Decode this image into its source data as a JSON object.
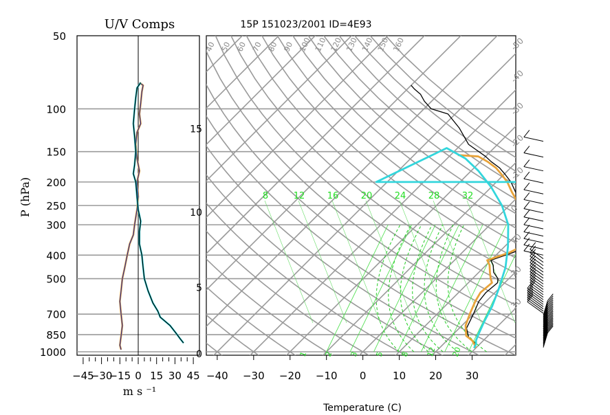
{
  "chart_data": [
    {
      "type": "line",
      "title": "U/V Comps",
      "xlabel": "m s ⁻¹",
      "ylabel": "P (hPa)",
      "xlim": [
        -50,
        50
      ],
      "ylim": [
        1000,
        50
      ],
      "y_scale": "log",
      "grid": true,
      "x_tick_labels": [
        "−45",
        "−30",
        "−15",
        "0",
        "15",
        "30",
        "45"
      ],
      "x_ticks": [
        -45,
        -30,
        -15,
        0,
        15,
        30,
        45
      ],
      "y_ticks": [
        50,
        100,
        150,
        200,
        250,
        300,
        400,
        500,
        700,
        850,
        1000
      ],
      "y_tick_labels": [
        "50",
        "100",
        "150",
        "200",
        "250",
        "300",
        "400",
        "500",
        "700",
        "850",
        "1000"
      ],
      "series": [
        {
          "color": "#e8a33a",
          "points": [
            [
              1,
              78
            ],
            [
              4,
              80
            ],
            [
              3,
              85
            ],
            [
              2,
              95
            ],
            [
              1,
              105
            ],
            [
              2,
              115
            ],
            [
              -1,
              125
            ],
            [
              -2,
              140
            ],
            [
              -1,
              160
            ],
            [
              1,
              180
            ],
            [
              -1,
              200
            ],
            [
              0,
              230
            ],
            [
              -1,
              260
            ],
            [
              -2,
              280
            ],
            [
              -3,
              300
            ],
            [
              -4,
              330
            ],
            [
              -7,
              360
            ],
            [
              -9,
              400
            ],
            [
              -11,
              450
            ],
            [
              -13,
              500
            ],
            [
              -14,
              560
            ],
            [
              -15,
              620
            ],
            [
              -14,
              700
            ],
            [
              -13,
              780
            ],
            [
              -14,
              860
            ],
            [
              -15,
              940
            ],
            [
              -14,
              980
            ]
          ]
        },
        {
          "color": "#2f2f8f",
          "points": [
            [
              1,
              78
            ],
            [
              4,
              80
            ],
            [
              3,
              85
            ],
            [
              2,
              95
            ],
            [
              1,
              105
            ],
            [
              2,
              115
            ],
            [
              -1,
              125
            ],
            [
              -2,
              140
            ],
            [
              -1,
              160
            ],
            [
              1,
              180
            ],
            [
              -1,
              200
            ],
            [
              0,
              230
            ],
            [
              -1,
              260
            ],
            [
              -2,
              280
            ],
            [
              -3,
              300
            ],
            [
              -4,
              330
            ],
            [
              -7,
              360
            ],
            [
              -9,
              400
            ],
            [
              -11,
              450
            ],
            [
              -13,
              500
            ],
            [
              -14,
              560
            ],
            [
              -15,
              620
            ],
            [
              -14,
              700
            ],
            [
              -13,
              780
            ],
            [
              -14,
              860
            ],
            [
              -15,
              940
            ],
            [
              -14,
              980
            ]
          ]
        },
        {
          "color": "#33d6dc",
          "points": [
            [
              2,
              78
            ],
            [
              -1,
              82
            ],
            [
              -2,
              90
            ],
            [
              -3,
              100
            ],
            [
              -4,
              115
            ],
            [
              -3,
              130
            ],
            [
              -2,
              150
            ],
            [
              -3,
              170
            ],
            [
              -4,
              185
            ],
            [
              -2,
              200
            ],
            [
              -1,
              230
            ],
            [
              0,
              260
            ],
            [
              2,
              290
            ],
            [
              1,
              320
            ],
            [
              1,
              360
            ],
            [
              3,
              400
            ],
            [
              4,
              450
            ],
            [
              5,
              500
            ],
            [
              8,
              560
            ],
            [
              12,
              630
            ],
            [
              16,
              680
            ],
            [
              18,
              720
            ],
            [
              26,
              780
            ],
            [
              31,
              840
            ],
            [
              34,
              880
            ],
            [
              37,
              920
            ]
          ]
        },
        {
          "color": "#000000",
          "points": [
            [
              2,
              78
            ],
            [
              -1,
              82
            ],
            [
              -2,
              90
            ],
            [
              -3,
              100
            ],
            [
              -4,
              115
            ],
            [
              -3,
              130
            ],
            [
              -2,
              150
            ],
            [
              -3,
              170
            ],
            [
              -4,
              185
            ],
            [
              -2,
              200
            ],
            [
              -1,
              230
            ],
            [
              0,
              260
            ],
            [
              2,
              290
            ],
            [
              1,
              320
            ],
            [
              1,
              360
            ],
            [
              3,
              400
            ],
            [
              4,
              450
            ],
            [
              5,
              500
            ],
            [
              8,
              560
            ],
            [
              12,
              630
            ],
            [
              16,
              680
            ],
            [
              18,
              720
            ],
            [
              26,
              780
            ],
            [
              31,
              840
            ],
            [
              34,
              880
            ],
            [
              37,
              920
            ]
          ]
        }
      ]
    },
    {
      "type": "line",
      "title": "15P 151023/2001 ID=4E93",
      "xlabel": "Temperature (C)",
      "xlim": [
        -43,
        42
      ],
      "x_ticks": [
        -40,
        -30,
        -20,
        -10,
        0,
        10,
        20,
        30
      ],
      "x_tick_labels": [
        "−40",
        "−30",
        "−20",
        "−10",
        "0",
        "10",
        "20",
        "30"
      ],
      "height_km_ticks": [
        0,
        5,
        10,
        15
      ],
      "isotherm_labels_right": [
        "-50",
        "-40",
        "-30",
        "-20",
        "-10",
        "0",
        "10",
        "20",
        "30"
      ],
      "dry_adiabat_labels_top": [
        "40",
        "50",
        "60",
        "70",
        "80",
        "90",
        "100",
        "110",
        "120",
        "130",
        "140",
        "150",
        "160"
      ],
      "mixing_ratio_labels": [
        "8",
        "12",
        "16",
        "20",
        "24",
        "28",
        "32"
      ],
      "mixing_ratio_bottom_labels": [
        "1",
        "2",
        "3",
        "5",
        "8",
        "12",
        "20"
      ],
      "series": [
        {
          "name": "temperature",
          "color": "#000000",
          "points": [
            [
              29.5,
              965
            ],
            [
              29,
              930
            ],
            [
              27,
              900
            ],
            [
              25,
              870
            ],
            [
              22,
              800
            ],
            [
              20,
              700
            ],
            [
              18,
              620
            ],
            [
              17.5,
              570
            ],
            [
              18,
              520
            ],
            [
              17,
              500
            ],
            [
              14,
              470
            ],
            [
              12,
              440
            ],
            [
              10,
              420
            ],
            [
              14,
              390
            ],
            [
              16,
              370
            ],
            [
              15,
              350
            ],
            [
              12,
              320
            ],
            [
              10,
              300
            ],
            [
              8,
              280
            ],
            [
              5,
              260
            ],
            [
              2,
              240
            ],
            [
              -2,
              220
            ],
            [
              -6,
              200
            ],
            [
              -10,
              185
            ],
            [
              -13,
              175
            ],
            [
              -17,
              165
            ],
            [
              -20,
              157
            ],
            [
              -28,
              140
            ],
            [
              -35,
              120
            ],
            [
              -42,
              105
            ],
            [
              -48,
              100
            ],
            [
              -52,
              93
            ],
            [
              -55,
              87
            ],
            [
              -58,
              83
            ],
            [
              -60,
              80
            ]
          ]
        },
        {
          "name": "dewpoint",
          "color": "#e8a33a",
          "points": [
            [
              30,
              965
            ],
            [
              28.5,
              930
            ],
            [
              27,
              900
            ],
            [
              24,
              860
            ],
            [
              21,
              780
            ],
            [
              19,
              700
            ],
            [
              17,
              620
            ],
            [
              16,
              570
            ],
            [
              16.5,
              520
            ],
            [
              15,
              500
            ],
            [
              13,
              470
            ],
            [
              11,
              440
            ],
            [
              9,
              420
            ],
            [
              13,
              390
            ],
            [
              14.5,
              370
            ],
            [
              13,
              350
            ],
            [
              11,
              320
            ],
            [
              9,
              300
            ],
            [
              7,
              280
            ],
            [
              4,
              260
            ],
            [
              1,
              240
            ],
            [
              -3,
              220
            ],
            [
              -7,
              200
            ],
            [
              -11,
              185
            ],
            [
              -14,
              175
            ],
            [
              -18,
              165
            ],
            [
              -22,
              157
            ],
            [
              -28,
              155
            ]
          ]
        },
        {
          "name": "parcel",
          "color": "#33d6dc",
          "points": [
            [
              29.5,
              965
            ],
            [
              29,
              930
            ],
            [
              28,
              900
            ],
            [
              27,
              850
            ],
            [
              25,
              750
            ],
            [
              23,
              650
            ],
            [
              20,
              550
            ],
            [
              16,
              450
            ],
            [
              11,
              370
            ],
            [
              5,
              300
            ],
            [
              -2,
              250
            ],
            [
              -10,
              210
            ],
            [
              -18,
              180
            ],
            [
              -25,
              160
            ],
            [
              -33,
              145
            ],
            [
              -43,
              200
            ],
            [
              -30,
              200
            ],
            [
              -15,
              200
            ],
            [
              0,
              200
            ]
          ]
        }
      ]
    }
  ]
}
